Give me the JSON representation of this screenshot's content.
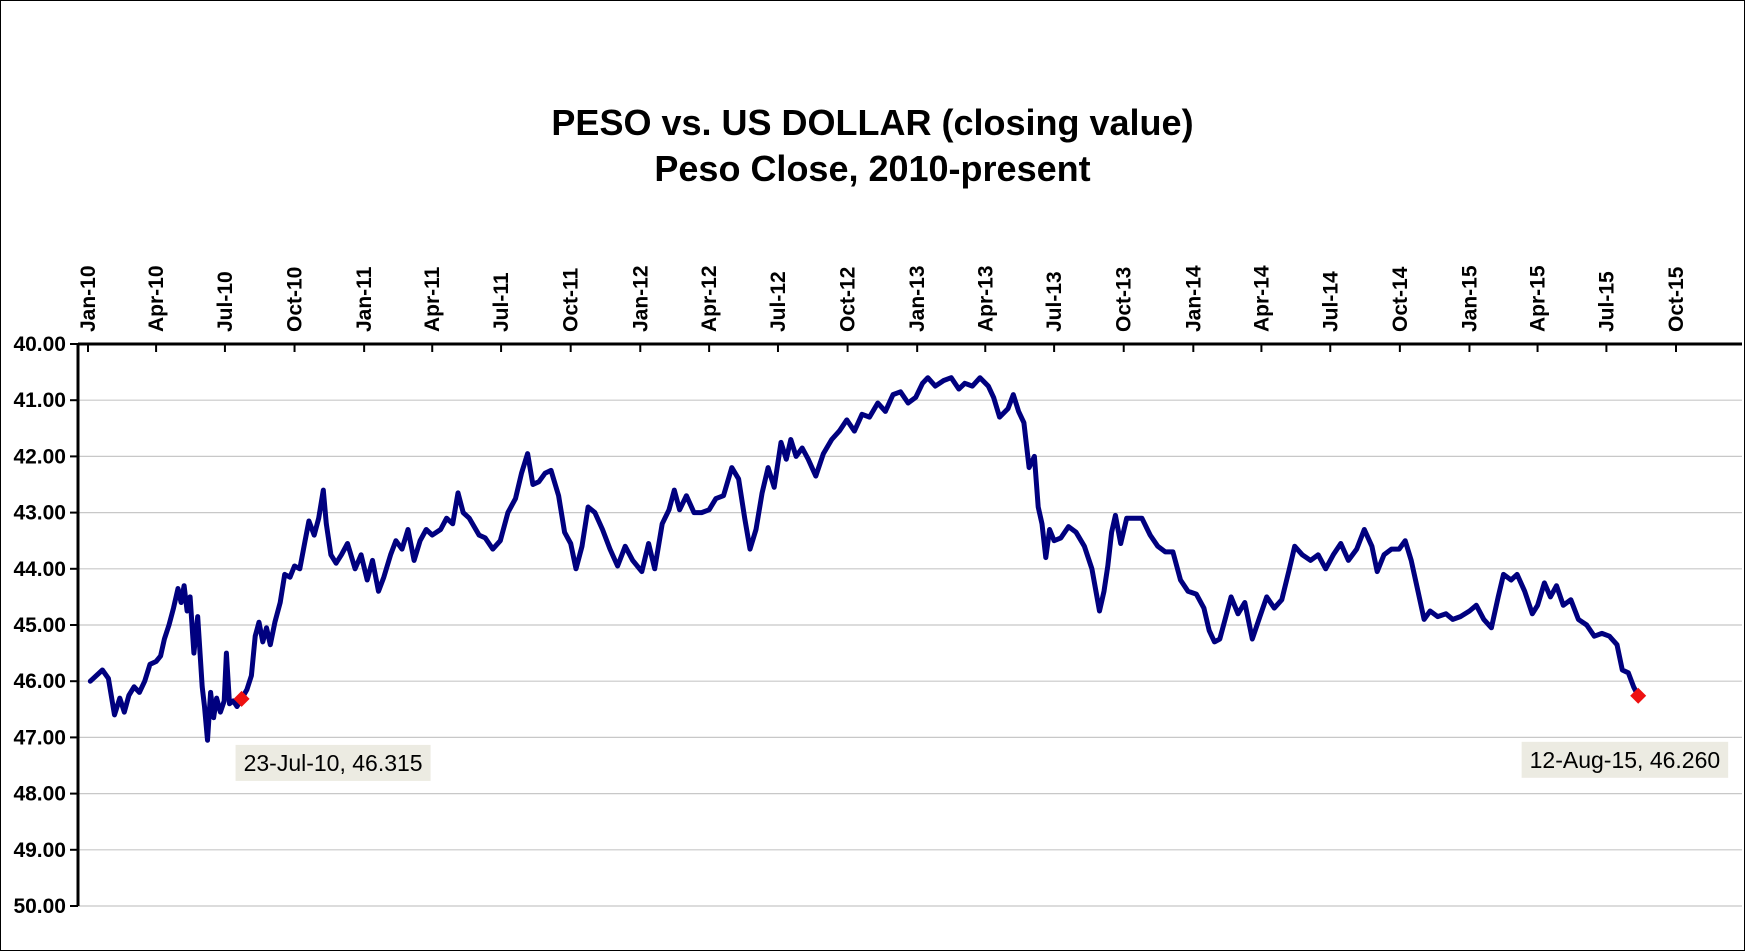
{
  "chart_data": {
    "type": "line",
    "title": "PESO vs. US DOLLAR (closing value)",
    "subtitle": "Peso Close, 2010-present",
    "xlabel": "",
    "ylabel": "",
    "x_axis_position": "top",
    "y_axis_reversed": true,
    "ylim": [
      40,
      50
    ],
    "xlim": [
      "2010-01-01",
      "2015-12-31"
    ],
    "grid": true,
    "line_color": "#00007f",
    "marker_color": "#ee1111",
    "y_ticks": [
      "40.00",
      "41.00",
      "42.00",
      "43.00",
      "44.00",
      "45.00",
      "46.00",
      "47.00",
      "48.00",
      "49.00",
      "50.00"
    ],
    "x_ticks": [
      {
        "label": "Jan-10",
        "date": "2010-01-01"
      },
      {
        "label": "Apr-10",
        "date": "2010-04-01"
      },
      {
        "label": "Jul-10",
        "date": "2010-07-01"
      },
      {
        "label": "Oct-10",
        "date": "2010-10-01"
      },
      {
        "label": "Jan-11",
        "date": "2011-01-01"
      },
      {
        "label": "Apr-11",
        "date": "2011-04-01"
      },
      {
        "label": "Jul-11",
        "date": "2011-07-01"
      },
      {
        "label": "Oct-11",
        "date": "2011-10-01"
      },
      {
        "label": "Jan-12",
        "date": "2012-01-01"
      },
      {
        "label": "Apr-12",
        "date": "2012-04-01"
      },
      {
        "label": "Jul-12",
        "date": "2012-07-01"
      },
      {
        "label": "Oct-12",
        "date": "2012-10-01"
      },
      {
        "label": "Jan-13",
        "date": "2013-01-01"
      },
      {
        "label": "Apr-13",
        "date": "2013-04-01"
      },
      {
        "label": "Jul-13",
        "date": "2013-07-01"
      },
      {
        "label": "Oct-13",
        "date": "2013-10-01"
      },
      {
        "label": "Jan-14",
        "date": "2014-01-01"
      },
      {
        "label": "Apr-14",
        "date": "2014-04-01"
      },
      {
        "label": "Jul-14",
        "date": "2014-07-01"
      },
      {
        "label": "Oct-14",
        "date": "2014-10-01"
      },
      {
        "label": "Jan-15",
        "date": "2015-01-01"
      },
      {
        "label": "Apr-15",
        "date": "2015-04-01"
      },
      {
        "label": "Jul-15",
        "date": "2015-07-01"
      },
      {
        "label": "Oct-15",
        "date": "2015-10-01"
      }
    ],
    "series": [
      {
        "name": "",
        "points": [
          [
            "2010-01-04",
            46.0
          ],
          [
            "2010-01-20",
            45.8
          ],
          [
            "2010-01-28",
            45.95
          ],
          [
            "2010-02-05",
            46.6
          ],
          [
            "2010-02-12",
            46.3
          ],
          [
            "2010-02-18",
            46.55
          ],
          [
            "2010-02-24",
            46.25
          ],
          [
            "2010-03-03",
            46.1
          ],
          [
            "2010-03-10",
            46.2
          ],
          [
            "2010-03-17",
            46.0
          ],
          [
            "2010-03-24",
            45.7
          ],
          [
            "2010-04-01",
            45.65
          ],
          [
            "2010-04-07",
            45.55
          ],
          [
            "2010-04-12",
            45.25
          ],
          [
            "2010-04-18",
            45.0
          ],
          [
            "2010-04-24",
            44.7
          ],
          [
            "2010-04-30",
            44.35
          ],
          [
            "2010-05-04",
            44.6
          ],
          [
            "2010-05-08",
            44.3
          ],
          [
            "2010-05-12",
            44.75
          ],
          [
            "2010-05-16",
            44.5
          ],
          [
            "2010-05-21",
            45.5
          ],
          [
            "2010-05-26",
            44.85
          ],
          [
            "2010-06-01",
            46.1
          ],
          [
            "2010-06-04",
            46.45
          ],
          [
            "2010-06-08",
            47.05
          ],
          [
            "2010-06-12",
            46.2
          ],
          [
            "2010-06-16",
            46.65
          ],
          [
            "2010-06-20",
            46.3
          ],
          [
            "2010-06-25",
            46.55
          ],
          [
            "2010-06-30",
            46.35
          ],
          [
            "2010-07-03",
            45.5
          ],
          [
            "2010-07-07",
            46.4
          ],
          [
            "2010-07-12",
            46.35
          ],
          [
            "2010-07-17",
            46.45
          ],
          [
            "2010-07-23",
            46.315
          ],
          [
            "2010-07-30",
            46.15
          ],
          [
            "2010-08-05",
            45.9
          ],
          [
            "2010-08-10",
            45.2
          ],
          [
            "2010-08-15",
            44.95
          ],
          [
            "2010-08-20",
            45.3
          ],
          [
            "2010-08-25",
            45.05
          ],
          [
            "2010-08-30",
            45.35
          ],
          [
            "2010-09-05",
            44.95
          ],
          [
            "2010-09-12",
            44.6
          ],
          [
            "2010-09-18",
            44.1
          ],
          [
            "2010-09-25",
            44.15
          ],
          [
            "2010-10-01",
            43.95
          ],
          [
            "2010-10-08",
            44.0
          ],
          [
            "2010-10-15",
            43.5
          ],
          [
            "2010-10-20",
            43.15
          ],
          [
            "2010-10-27",
            43.4
          ],
          [
            "2010-11-02",
            43.1
          ],
          [
            "2010-11-08",
            42.6
          ],
          [
            "2010-11-12",
            43.2
          ],
          [
            "2010-11-18",
            43.75
          ],
          [
            "2010-11-25",
            43.9
          ],
          [
            "2010-12-02",
            43.75
          ],
          [
            "2010-12-10",
            43.55
          ],
          [
            "2010-12-20",
            44.0
          ],
          [
            "2010-12-28",
            43.75
          ],
          [
            "2011-01-05",
            44.2
          ],
          [
            "2011-01-12",
            43.85
          ],
          [
            "2011-01-20",
            44.4
          ],
          [
            "2011-01-27",
            44.15
          ],
          [
            "2011-02-05",
            43.75
          ],
          [
            "2011-02-12",
            43.5
          ],
          [
            "2011-02-20",
            43.65
          ],
          [
            "2011-02-28",
            43.3
          ],
          [
            "2011-03-08",
            43.85
          ],
          [
            "2011-03-16",
            43.5
          ],
          [
            "2011-03-24",
            43.3
          ],
          [
            "2011-04-01",
            43.4
          ],
          [
            "2011-04-12",
            43.3
          ],
          [
            "2011-04-20",
            43.1
          ],
          [
            "2011-04-28",
            43.2
          ],
          [
            "2011-05-05",
            42.65
          ],
          [
            "2011-05-12",
            43.0
          ],
          [
            "2011-05-20",
            43.1
          ],
          [
            "2011-06-02",
            43.4
          ],
          [
            "2011-06-10",
            43.45
          ],
          [
            "2011-06-20",
            43.65
          ],
          [
            "2011-06-30",
            43.5
          ],
          [
            "2011-07-10",
            43.0
          ],
          [
            "2011-07-20",
            42.75
          ],
          [
            "2011-07-28",
            42.3
          ],
          [
            "2011-08-05",
            41.95
          ],
          [
            "2011-08-12",
            42.5
          ],
          [
            "2011-08-20",
            42.45
          ],
          [
            "2011-08-28",
            42.3
          ],
          [
            "2011-09-05",
            42.25
          ],
          [
            "2011-09-15",
            42.7
          ],
          [
            "2011-09-23",
            43.35
          ],
          [
            "2011-10-01",
            43.55
          ],
          [
            "2011-10-08",
            44.0
          ],
          [
            "2011-10-16",
            43.6
          ],
          [
            "2011-10-24",
            42.9
          ],
          [
            "2011-11-02",
            43.0
          ],
          [
            "2011-11-12",
            43.3
          ],
          [
            "2011-11-22",
            43.65
          ],
          [
            "2011-12-02",
            43.95
          ],
          [
            "2011-12-12",
            43.6
          ],
          [
            "2011-12-22",
            43.85
          ],
          [
            "2012-01-03",
            44.05
          ],
          [
            "2012-01-12",
            43.55
          ],
          [
            "2012-01-20",
            44.0
          ],
          [
            "2012-01-30",
            43.2
          ],
          [
            "2012-02-08",
            42.95
          ],
          [
            "2012-02-15",
            42.6
          ],
          [
            "2012-02-22",
            42.95
          ],
          [
            "2012-03-02",
            42.7
          ],
          [
            "2012-03-12",
            43.0
          ],
          [
            "2012-03-22",
            43.0
          ],
          [
            "2012-04-01",
            42.95
          ],
          [
            "2012-04-10",
            42.75
          ],
          [
            "2012-04-20",
            42.7
          ],
          [
            "2012-05-01",
            42.2
          ],
          [
            "2012-05-10",
            42.4
          ],
          [
            "2012-05-18",
            43.1
          ],
          [
            "2012-05-25",
            43.65
          ],
          [
            "2012-06-02",
            43.3
          ],
          [
            "2012-06-10",
            42.65
          ],
          [
            "2012-06-18",
            42.2
          ],
          [
            "2012-06-26",
            42.55
          ],
          [
            "2012-07-05",
            41.75
          ],
          [
            "2012-07-12",
            42.05
          ],
          [
            "2012-07-18",
            41.7
          ],
          [
            "2012-07-25",
            42.0
          ],
          [
            "2012-08-02",
            41.85
          ],
          [
            "2012-08-10",
            42.05
          ],
          [
            "2012-08-20",
            42.35
          ],
          [
            "2012-08-30",
            41.95
          ],
          [
            "2012-09-10",
            41.7
          ],
          [
            "2012-09-20",
            41.55
          ],
          [
            "2012-09-30",
            41.35
          ],
          [
            "2012-10-10",
            41.55
          ],
          [
            "2012-10-20",
            41.25
          ],
          [
            "2012-10-30",
            41.3
          ],
          [
            "2012-11-10",
            41.05
          ],
          [
            "2012-11-20",
            41.2
          ],
          [
            "2012-11-30",
            40.9
          ],
          [
            "2012-12-10",
            40.85
          ],
          [
            "2012-12-20",
            41.05
          ],
          [
            "2012-12-30",
            40.95
          ],
          [
            "2013-01-08",
            40.7
          ],
          [
            "2013-01-15",
            40.6
          ],
          [
            "2013-01-25",
            40.75
          ],
          [
            "2013-02-05",
            40.65
          ],
          [
            "2013-02-15",
            40.6
          ],
          [
            "2013-02-25",
            40.8
          ],
          [
            "2013-03-05",
            40.7
          ],
          [
            "2013-03-15",
            40.75
          ],
          [
            "2013-03-25",
            40.6
          ],
          [
            "2013-04-05",
            40.75
          ],
          [
            "2013-04-12",
            40.95
          ],
          [
            "2013-04-20",
            41.3
          ],
          [
            "2013-05-01",
            41.15
          ],
          [
            "2013-05-08",
            40.9
          ],
          [
            "2013-05-15",
            41.2
          ],
          [
            "2013-05-22",
            41.4
          ],
          [
            "2013-05-29",
            42.2
          ],
          [
            "2013-06-05",
            42.0
          ],
          [
            "2013-06-10",
            42.9
          ],
          [
            "2013-06-15",
            43.2
          ],
          [
            "2013-06-20",
            43.8
          ],
          [
            "2013-06-25",
            43.3
          ],
          [
            "2013-07-01",
            43.5
          ],
          [
            "2013-07-10",
            43.45
          ],
          [
            "2013-07-20",
            43.25
          ],
          [
            "2013-07-30",
            43.35
          ],
          [
            "2013-08-10",
            43.6
          ],
          [
            "2013-08-20",
            44.0
          ],
          [
            "2013-08-30",
            44.75
          ],
          [
            "2013-09-05",
            44.4
          ],
          [
            "2013-09-10",
            43.95
          ],
          [
            "2013-09-15",
            43.35
          ],
          [
            "2013-09-20",
            43.05
          ],
          [
            "2013-09-27",
            43.55
          ],
          [
            "2013-10-05",
            43.1
          ],
          [
            "2013-10-15",
            43.1
          ],
          [
            "2013-10-25",
            43.1
          ],
          [
            "2013-11-05",
            43.4
          ],
          [
            "2013-11-15",
            43.6
          ],
          [
            "2013-11-25",
            43.7
          ],
          [
            "2013-12-05",
            43.7
          ],
          [
            "2013-12-15",
            44.2
          ],
          [
            "2013-12-25",
            44.4
          ],
          [
            "2014-01-05",
            44.45
          ],
          [
            "2014-01-15",
            44.7
          ],
          [
            "2014-01-22",
            45.1
          ],
          [
            "2014-01-29",
            45.3
          ],
          [
            "2014-02-05",
            45.25
          ],
          [
            "2014-02-12",
            44.9
          ],
          [
            "2014-02-20",
            44.5
          ],
          [
            "2014-03-01",
            44.8
          ],
          [
            "2014-03-10",
            44.6
          ],
          [
            "2014-03-20",
            45.25
          ],
          [
            "2014-03-30",
            44.85
          ],
          [
            "2014-04-08",
            44.5
          ],
          [
            "2014-04-18",
            44.7
          ],
          [
            "2014-04-28",
            44.55
          ],
          [
            "2014-05-08",
            44.0
          ],
          [
            "2014-05-15",
            43.6
          ],
          [
            "2014-05-25",
            43.75
          ],
          [
            "2014-06-05",
            43.85
          ],
          [
            "2014-06-15",
            43.75
          ],
          [
            "2014-06-25",
            44.0
          ],
          [
            "2014-07-05",
            43.75
          ],
          [
            "2014-07-15",
            43.55
          ],
          [
            "2014-07-25",
            43.85
          ],
          [
            "2014-08-05",
            43.65
          ],
          [
            "2014-08-15",
            43.3
          ],
          [
            "2014-08-25",
            43.6
          ],
          [
            "2014-09-01",
            44.05
          ],
          [
            "2014-09-10",
            43.75
          ],
          [
            "2014-09-20",
            43.65
          ],
          [
            "2014-09-30",
            43.65
          ],
          [
            "2014-10-08",
            43.5
          ],
          [
            "2014-10-16",
            43.85
          ],
          [
            "2014-10-25",
            44.4
          ],
          [
            "2014-11-02",
            44.9
          ],
          [
            "2014-11-10",
            44.75
          ],
          [
            "2014-11-20",
            44.85
          ],
          [
            "2014-12-01",
            44.8
          ],
          [
            "2014-12-10",
            44.9
          ],
          [
            "2014-12-20",
            44.85
          ],
          [
            "2015-01-01",
            44.75
          ],
          [
            "2015-01-10",
            44.65
          ],
          [
            "2015-01-20",
            44.9
          ],
          [
            "2015-01-30",
            45.05
          ],
          [
            "2015-02-08",
            44.5
          ],
          [
            "2015-02-15",
            44.1
          ],
          [
            "2015-02-25",
            44.2
          ],
          [
            "2015-03-05",
            44.1
          ],
          [
            "2015-03-15",
            44.4
          ],
          [
            "2015-03-25",
            44.8
          ],
          [
            "2015-04-01",
            44.65
          ],
          [
            "2015-04-10",
            44.25
          ],
          [
            "2015-04-18",
            44.5
          ],
          [
            "2015-04-26",
            44.3
          ],
          [
            "2015-05-05",
            44.65
          ],
          [
            "2015-05-15",
            44.55
          ],
          [
            "2015-05-25",
            44.9
          ],
          [
            "2015-06-05",
            45.0
          ],
          [
            "2015-06-15",
            45.2
          ],
          [
            "2015-06-25",
            45.15
          ],
          [
            "2015-07-05",
            45.2
          ],
          [
            "2015-07-15",
            45.35
          ],
          [
            "2015-07-22",
            45.8
          ],
          [
            "2015-07-30",
            45.85
          ],
          [
            "2015-08-06",
            46.1
          ],
          [
            "2015-08-12",
            46.26
          ]
        ]
      }
    ],
    "annotations": [
      {
        "date": "2010-07-23",
        "value": 46.315,
        "label": "23-Jul-10, 46.315"
      },
      {
        "date": "2015-08-12",
        "value": 46.26,
        "label": "12-Aug-15, 46.260"
      }
    ]
  }
}
